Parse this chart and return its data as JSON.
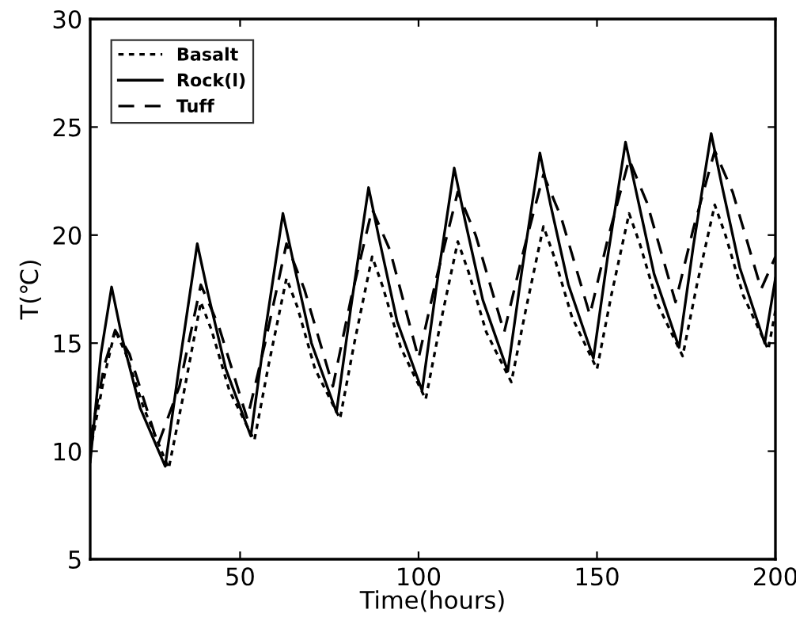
{
  "chart_data": {
    "type": "line",
    "xlabel": "Time(hours)",
    "ylabel": "T(℃)",
    "xlim": [
      8,
      200
    ],
    "ylim": [
      5,
      30
    ],
    "xticks": [
      50,
      100,
      150,
      200
    ],
    "yticks": [
      5,
      10,
      15,
      20,
      25,
      30
    ],
    "grid": false,
    "legend": "top left",
    "series": [
      {
        "name": "Basalt",
        "color": "#000000",
        "line_style": "dotted",
        "x": [
          8,
          12,
          15,
          18,
          23,
          30,
          34,
          39,
          42,
          47,
          54,
          58,
          63,
          66,
          71,
          78,
          82,
          87,
          90,
          95,
          102,
          106,
          111,
          114,
          119,
          126,
          130,
          135,
          138,
          143,
          150,
          154,
          159,
          162,
          167,
          174,
          178,
          183,
          186,
          191,
          198,
          200
        ],
        "values": [
          10.0,
          13.5,
          15.6,
          14.5,
          12.0,
          9.2,
          12.5,
          16.9,
          15.6,
          12.8,
          10.5,
          14.0,
          18.0,
          16.7,
          13.8,
          11.5,
          15.0,
          19.0,
          17.6,
          14.8,
          12.4,
          15.8,
          19.7,
          18.3,
          15.5,
          13.2,
          16.5,
          20.4,
          19.0,
          16.2,
          13.8,
          17.2,
          21.0,
          19.6,
          16.8,
          14.4,
          17.7,
          21.4,
          20.0,
          17.2,
          14.7,
          16.5
        ]
      },
      {
        "name": "Rock(l)",
        "color": "#000000",
        "line_style": "solid",
        "x": [
          8,
          11,
          14,
          17,
          22,
          29,
          33,
          38,
          41,
          46,
          53,
          57,
          62,
          65,
          70,
          77,
          81,
          86,
          89,
          94,
          101,
          105,
          110,
          113,
          118,
          125,
          129,
          134,
          137,
          142,
          149,
          153,
          158,
          161,
          166,
          173,
          177,
          182,
          185,
          190,
          197,
          200
        ],
        "values": [
          9.5,
          14.5,
          17.6,
          15.2,
          12.0,
          9.3,
          14.0,
          19.6,
          17.3,
          13.8,
          10.7,
          15.5,
          21.0,
          18.7,
          15.0,
          11.8,
          16.6,
          22.2,
          19.8,
          16.0,
          12.8,
          17.6,
          23.1,
          20.7,
          17.0,
          13.7,
          18.4,
          23.8,
          21.4,
          17.7,
          14.3,
          19.0,
          24.3,
          22.0,
          18.2,
          14.8,
          19.5,
          24.7,
          22.3,
          18.5,
          15.0,
          18.0
        ]
      },
      {
        "name": "Tuff",
        "color": "#000000",
        "line_style": "dashed",
        "x": [
          8,
          12,
          15,
          19,
          27,
          33,
          39,
          44,
          52,
          57,
          63,
          68,
          76,
          81,
          87,
          92,
          100,
          105,
          111,
          116,
          124,
          129,
          135,
          140,
          148,
          153,
          159,
          164,
          172,
          177,
          183,
          188,
          196,
          200
        ],
        "values": [
          10.5,
          14.0,
          15.6,
          14.5,
          10.3,
          13.0,
          17.7,
          15.8,
          11.5,
          15.0,
          19.6,
          17.5,
          13.0,
          17.0,
          21.2,
          19.3,
          14.3,
          18.0,
          22.0,
          20.0,
          15.5,
          19.0,
          22.8,
          20.8,
          16.3,
          19.8,
          23.5,
          21.5,
          16.9,
          20.3,
          23.9,
          22.0,
          17.5,
          19.0
        ]
      }
    ]
  }
}
